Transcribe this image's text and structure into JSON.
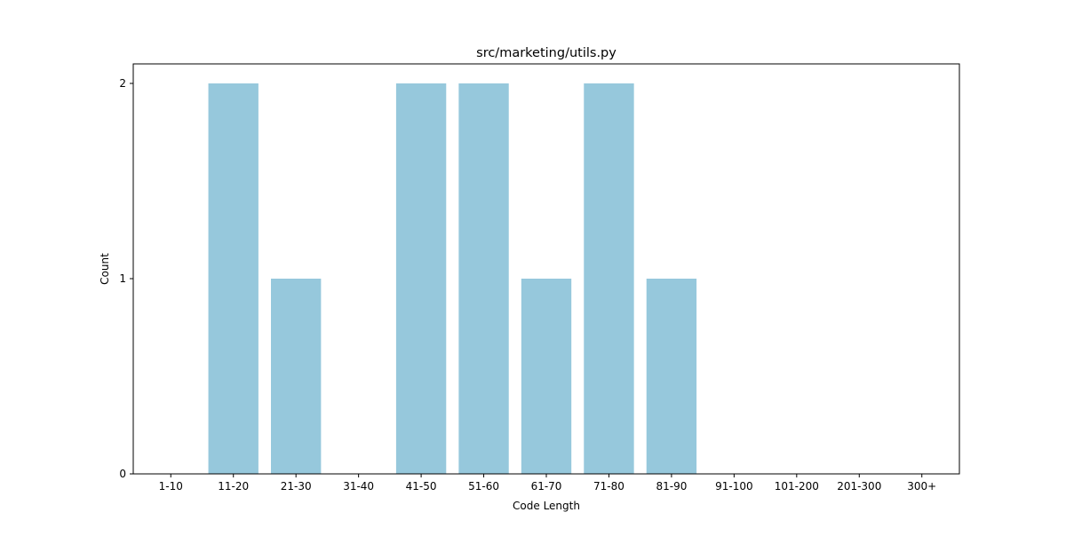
{
  "chart_data": {
    "type": "bar",
    "title": "src/marketing/utils.py",
    "xlabel": "Code Length",
    "ylabel": "Count",
    "categories": [
      "1-10",
      "11-20",
      "21-30",
      "31-40",
      "41-50",
      "51-60",
      "61-70",
      "71-80",
      "81-90",
      "91-100",
      "101-200",
      "201-300",
      "300+"
    ],
    "values": [
      0,
      2,
      1,
      0,
      2,
      2,
      1,
      2,
      1,
      0,
      0,
      0,
      0
    ],
    "ylim": [
      0,
      2.1
    ],
    "yticks": [
      0,
      1,
      2
    ],
    "grid": false,
    "bar_color": "#96c8dc",
    "axis_color": "#000000"
  }
}
